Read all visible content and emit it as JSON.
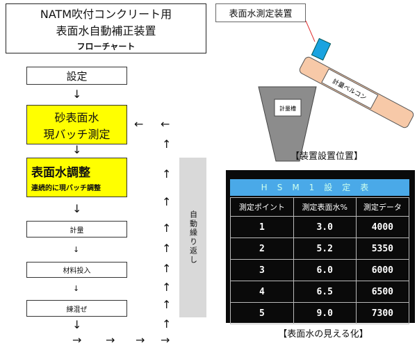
{
  "title": {
    "line1": "NATM吹付コンクリート用",
    "line2": "表面水自動補正装置",
    "line3": "フローチャート"
  },
  "flow": {
    "setting": "設定",
    "measure_line1": "砂表面水",
    "measure_line2": "現バッチ測定",
    "adjust": "表面水調整",
    "adjust_sub": "連続的に現バッチ調整",
    "weigh": "計量",
    "input": "材料投入",
    "mix": "練混ぜ",
    "loop": "自動繰り返し",
    "arrow_down": "↓",
    "arrow_up": "↑",
    "arrow_left": "←",
    "arrow_right": "→"
  },
  "install": {
    "device_label": "表面水測定装置",
    "belt_label": "計量ベルコン",
    "hopper_label": "計量槽",
    "caption": "【装置設置位置】",
    "colors": {
      "device": "#1aa3e0",
      "belt": "#f7c9a8",
      "hopper": "#8c8c8c"
    }
  },
  "screen": {
    "header": "HSM1設定表",
    "columns": [
      "測定ポイント",
      "測定表面水%",
      "測定データ"
    ],
    "rows": [
      [
        "1",
        "3.0",
        "4000"
      ],
      [
        "2",
        "5.2",
        "5350"
      ],
      [
        "3",
        "6.0",
        "6000"
      ],
      [
        "4",
        "6.5",
        "6500"
      ],
      [
        "5",
        "9.0",
        "7300"
      ]
    ],
    "caption": "【表面水の見える化】",
    "colors": {
      "header": "#4aa9e8"
    }
  }
}
